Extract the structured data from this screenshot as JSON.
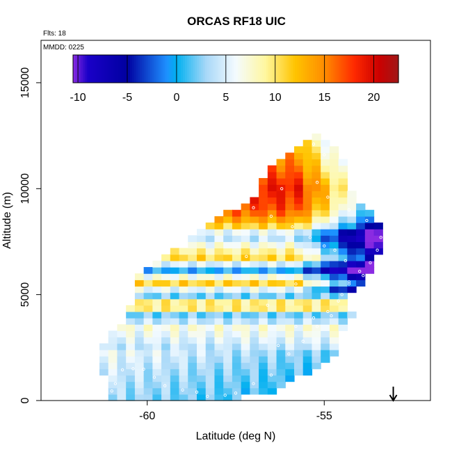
{
  "chart_data": {
    "type": "heatmap",
    "title": "ORCAS RF18 UIC",
    "xlabel": "Latitude (deg N)",
    "ylabel": "Altitude (m)",
    "flts_note": "Flts: 18",
    "mmdd_note": "MMDD: 0225",
    "xlim": [
      -63.0,
      -52.0
    ],
    "ylim": [
      0,
      17000
    ],
    "x_ticks": [
      -60,
      -55
    ],
    "x_tick_labels": [
      "-60",
      "-55"
    ],
    "y_ticks": [
      0,
      5000,
      10000,
      15000
    ],
    "y_tick_labels": [
      "0",
      "5000",
      "10000",
      "15000"
    ],
    "colorbar": {
      "range": [
        -10.5,
        22.5
      ],
      "ticks": [
        -10,
        -5,
        0,
        5,
        10,
        15,
        20
      ],
      "tick_labels": [
        "-10",
        "-5",
        "0",
        "5",
        "10",
        "15",
        "20"
      ],
      "stops": [
        [
          -10.5,
          "#8a2be2"
        ],
        [
          -9.0,
          "#1a00c8"
        ],
        [
          -5.0,
          "#0000a0"
        ],
        [
          -1.0,
          "#1e90ff"
        ],
        [
          0.0,
          "#00b0f0"
        ],
        [
          3.0,
          "#a8d8f8"
        ],
        [
          6.0,
          "#f4fbff"
        ],
        [
          9.0,
          "#fff7a0"
        ],
        [
          12.0,
          "#ffc400"
        ],
        [
          15.0,
          "#ff8c00"
        ],
        [
          18.0,
          "#ff2a00"
        ],
        [
          20.5,
          "#cc0000"
        ],
        [
          22.5,
          "#a01818"
        ]
      ]
    },
    "cell": {
      "dlat": 0.25,
      "dalt": 300
    },
    "envelope_lat": [
      -61.2,
      -61.2,
      -61.4,
      -61.2,
      -60.7,
      -60.4,
      -60.2,
      -59.0,
      -58.0,
      -57.0,
      -56.5,
      -55.3,
      -54.8,
      -54.4,
      -54.3,
      -53.4,
      -53.4,
      -53.6,
      -54.0,
      -54.3,
      -54.2,
      -54.6,
      -54.6,
      -55.2,
      -55.8,
      -56.2,
      -56.5,
      -56.9,
      -57.6,
      -58.5
    ],
    "envelope_alt": [
      0,
      1200,
      2100,
      2900,
      3700,
      4800,
      6000,
      7300,
      8600,
      9600,
      11200,
      12500,
      12200,
      11300,
      10000,
      8300,
      7000,
      6400,
      5300,
      5000,
      3800,
      3200,
      2300,
      1600,
      1000,
      500,
      300,
      200,
      100,
      0
    ],
    "profile_anchors_alt": [
      0,
      1500,
      2500,
      3000,
      3500,
      4000,
      4500,
      5000,
      5600,
      6200,
      6700,
      7200,
      7800,
      8300,
      9000,
      10000,
      11000,
      12500
    ],
    "profile_anchors_val": [
      1,
      2.5,
      4,
      5.5,
      7,
      1,
      13,
      1,
      12,
      -1,
      11,
      8,
      3,
      12,
      17,
      19,
      16,
      12
    ],
    "markers": [
      [
        -61.2,
        300
      ],
      [
        -61.0,
        450
      ],
      [
        -60.9,
        800
      ],
      [
        -60.7,
        1450
      ],
      [
        -60.4,
        1500
      ],
      [
        -60.1,
        1480
      ],
      [
        -59.8,
        1100
      ],
      [
        -59.5,
        700
      ],
      [
        -59.0,
        500
      ],
      [
        -58.6,
        400
      ],
      [
        -58.3,
        200
      ],
      [
        -57.8,
        250
      ],
      [
        -57.5,
        350
      ],
      [
        -57.0,
        800
      ],
      [
        -56.5,
        1200
      ],
      [
        -56.0,
        2200
      ],
      [
        -55.6,
        2800
      ],
      [
        -55.2,
        3500
      ],
      [
        -54.8,
        4000
      ],
      [
        -54.5,
        5000
      ],
      [
        -54.3,
        5600
      ],
      [
        -54.0,
        6100
      ],
      [
        -54.4,
        6600
      ],
      [
        -54.7,
        7100
      ],
      [
        -55.0,
        7300
      ],
      [
        -55.4,
        7700
      ],
      [
        -55.9,
        8200
      ],
      [
        -56.5,
        8700
      ],
      [
        -57.0,
        9100
      ],
      [
        -57.6,
        9800
      ],
      [
        -58.0,
        10400
      ],
      [
        -58.3,
        10800
      ],
      [
        -58.0,
        11400
      ],
      [
        -57.6,
        11800
      ],
      [
        -57.2,
        12100
      ],
      [
        -56.7,
        12200
      ],
      [
        -56.2,
        12200
      ],
      [
        -55.7,
        12200
      ],
      [
        -55.3,
        12100
      ],
      [
        -55.0,
        11600
      ],
      [
        -55.2,
        10300
      ],
      [
        -54.9,
        9600
      ],
      [
        -54.3,
        9000
      ],
      [
        -53.8,
        8500
      ],
      [
        -53.4,
        7700
      ],
      [
        -53.5,
        7100
      ],
      [
        -53.7,
        6500
      ],
      [
        -53.9,
        5900
      ],
      [
        -54.3,
        5500
      ],
      [
        -54.6,
        4700
      ],
      [
        -54.9,
        4200
      ],
      [
        -55.3,
        3900
      ],
      [
        -55.8,
        3500
      ],
      [
        -56.3,
        2600
      ],
      [
        -60.6,
        5200
      ],
      [
        -61.0,
        4200
      ],
      [
        -61.3,
        3000
      ],
      [
        -61.4,
        2000
      ],
      [
        -60.3,
        6500
      ],
      [
        -59.9,
        7400
      ],
      [
        -59.4,
        8400
      ],
      [
        -58.8,
        9200
      ],
      [
        -56.2,
        10000
      ],
      [
        -55.8,
        5500
      ],
      [
        -56.6,
        4500
      ],
      [
        -57.2,
        6800
      ]
    ],
    "arrow_lat": -53.05
  }
}
